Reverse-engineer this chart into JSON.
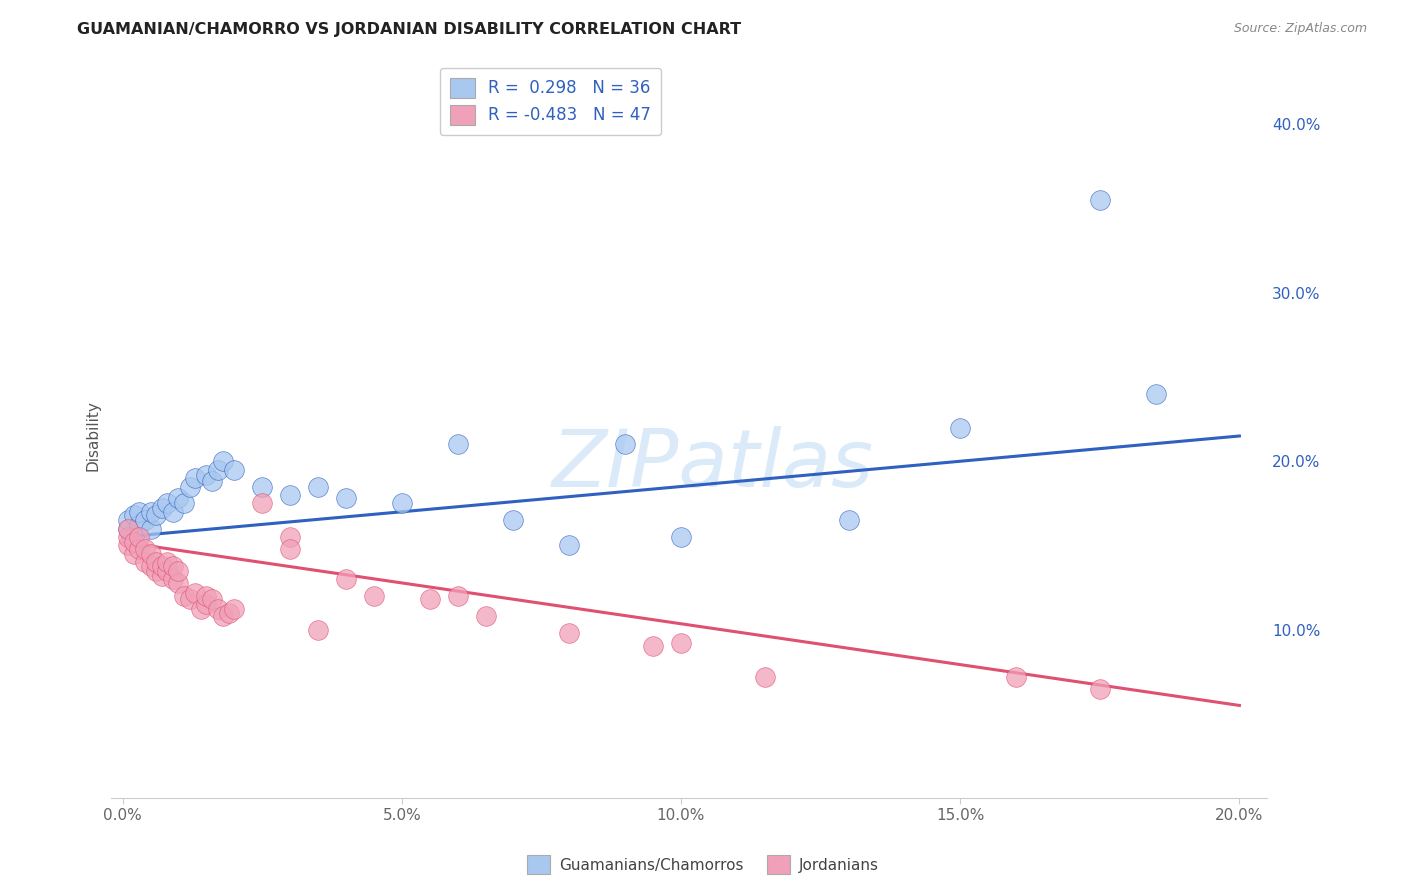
{
  "title": "GUAMANIAN/CHAMORRO VS JORDANIAN DISABILITY CORRELATION CHART",
  "source": "Source: ZipAtlas.com",
  "ylabel": "Disability",
  "background_color": "#ffffff",
  "grid_color": "#cccccc",
  "blue_color": "#a8c8f0",
  "pink_color": "#f0a0b8",
  "blue_line_color": "#3060c0",
  "pink_line_color": "#e05070",
  "R_blue": 0.298,
  "N_blue": 36,
  "R_pink": -0.483,
  "N_pink": 47,
  "watermark": "ZIPatlas",
  "blue_x": [
    0.001,
    0.001,
    0.002,
    0.002,
    0.003,
    0.003,
    0.004,
    0.005,
    0.005,
    0.006,
    0.007,
    0.008,
    0.009,
    0.01,
    0.011,
    0.012,
    0.013,
    0.015,
    0.016,
    0.017,
    0.018,
    0.02,
    0.025,
    0.03,
    0.035,
    0.04,
    0.05,
    0.06,
    0.07,
    0.08,
    0.09,
    0.1,
    0.13,
    0.15,
    0.175,
    0.185
  ],
  "blue_y": [
    0.16,
    0.165,
    0.155,
    0.168,
    0.162,
    0.17,
    0.165,
    0.16,
    0.17,
    0.168,
    0.172,
    0.175,
    0.17,
    0.178,
    0.175,
    0.185,
    0.19,
    0.192,
    0.188,
    0.195,
    0.2,
    0.195,
    0.185,
    0.18,
    0.185,
    0.178,
    0.175,
    0.21,
    0.165,
    0.15,
    0.21,
    0.155,
    0.165,
    0.22,
    0.355,
    0.24
  ],
  "pink_x": [
    0.001,
    0.001,
    0.001,
    0.002,
    0.002,
    0.003,
    0.003,
    0.004,
    0.004,
    0.005,
    0.005,
    0.006,
    0.006,
    0.007,
    0.007,
    0.008,
    0.008,
    0.009,
    0.009,
    0.01,
    0.01,
    0.011,
    0.012,
    0.013,
    0.014,
    0.015,
    0.015,
    0.016,
    0.017,
    0.018,
    0.019,
    0.02,
    0.025,
    0.03,
    0.03,
    0.035,
    0.04,
    0.045,
    0.055,
    0.06,
    0.065,
    0.08,
    0.095,
    0.1,
    0.115,
    0.16,
    0.175
  ],
  "pink_y": [
    0.15,
    0.155,
    0.16,
    0.145,
    0.152,
    0.148,
    0.155,
    0.14,
    0.148,
    0.138,
    0.145,
    0.135,
    0.14,
    0.132,
    0.138,
    0.135,
    0.14,
    0.13,
    0.138,
    0.128,
    0.135,
    0.12,
    0.118,
    0.122,
    0.112,
    0.115,
    0.12,
    0.118,
    0.112,
    0.108,
    0.11,
    0.112,
    0.175,
    0.155,
    0.148,
    0.1,
    0.13,
    0.12,
    0.118,
    0.12,
    0.108,
    0.098,
    0.09,
    0.092,
    0.072,
    0.072,
    0.065
  ]
}
